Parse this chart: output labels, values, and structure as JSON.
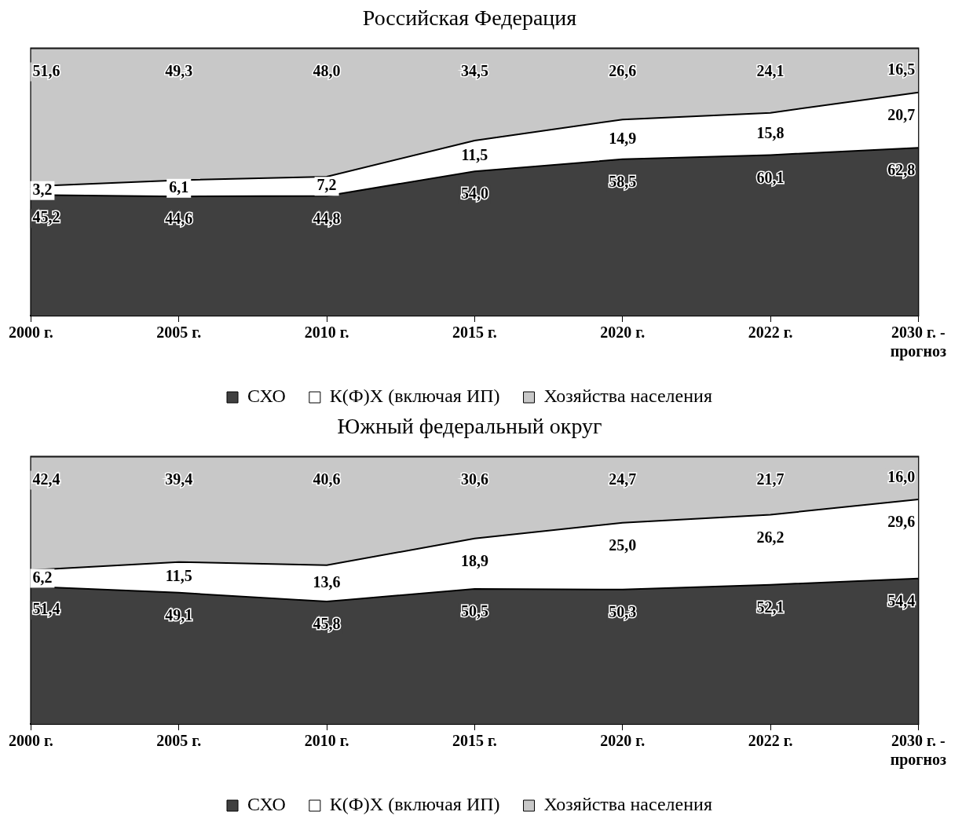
{
  "chart_data": [
    {
      "type": "area",
      "title": "Российская Федерация",
      "stacked": true,
      "legend": "bottom",
      "categories": [
        "2000 г.",
        "2005 г.",
        "2010 г.",
        "2015 г.",
        "2020 г.",
        "2022 г.",
        "2030 г. -\nпрогноз"
      ],
      "series": [
        {
          "name": "СХО",
          "color": "#404040",
          "values": [
            45.2,
            44.6,
            44.8,
            54.0,
            58.5,
            60.1,
            62.8
          ],
          "value_labels": [
            "45,2",
            "44,6",
            "44,8",
            "54,0",
            "58,5",
            "60,1",
            "62,8"
          ]
        },
        {
          "name": "К(Ф)Х (включая ИП)",
          "color": "#ffffff",
          "values": [
            3.2,
            6.1,
            7.2,
            11.5,
            14.9,
            15.8,
            20.7
          ],
          "value_labels": [
            "3,2",
            "6,1",
            "7,2",
            "11,5",
            "14,9",
            "15,8",
            "20,7"
          ]
        },
        {
          "name": "Хозяйства населения",
          "color": "#c8c8c8",
          "values": [
            51.6,
            49.3,
            48.0,
            34.5,
            26.6,
            24.1,
            16.5
          ],
          "value_labels": [
            "51,6",
            "49,3",
            "48,0",
            "34,5",
            "26,6",
            "24,1",
            "16,5"
          ]
        }
      ]
    },
    {
      "type": "area",
      "title": "Южный федеральный округ",
      "stacked": true,
      "legend": "bottom",
      "categories": [
        "2000 г.",
        "2005 г.",
        "2010 г.",
        "2015 г.",
        "2020 г.",
        "2022 г.",
        "2030 г. -\nпрогноз"
      ],
      "series": [
        {
          "name": "СХО",
          "color": "#404040",
          "values": [
            51.4,
            49.1,
            45.8,
            50.5,
            50.3,
            52.1,
            54.4
          ],
          "value_labels": [
            "51,4",
            "49,1",
            "45,8",
            "50,5",
            "50,3",
            "52,1",
            "54,4"
          ]
        },
        {
          "name": "К(Ф)Х (включая ИП)",
          "color": "#ffffff",
          "values": [
            6.2,
            11.5,
            13.6,
            18.9,
            25.0,
            26.2,
            29.6
          ],
          "value_labels": [
            "6,2",
            "11,5",
            "13,6",
            "18,9",
            "25,0",
            "26,2",
            "29,6"
          ]
        },
        {
          "name": "Хозяйства населения",
          "color": "#c8c8c8",
          "values": [
            42.4,
            39.4,
            40.6,
            30.6,
            24.7,
            21.7,
            16.0
          ],
          "value_labels": [
            "42,4",
            "39,4",
            "40,6",
            "30,6",
            "24,7",
            "21,7",
            "16,0"
          ]
        }
      ]
    }
  ]
}
